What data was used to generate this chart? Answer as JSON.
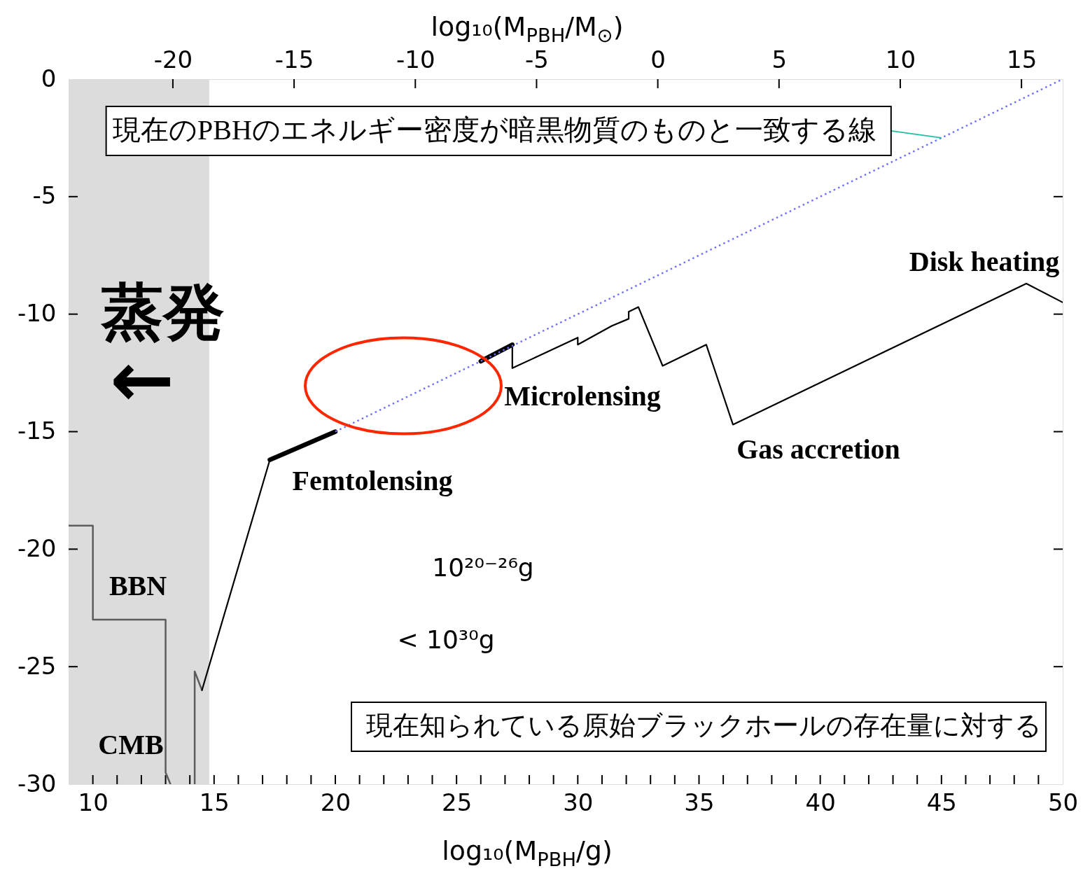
{
  "chart_data": {
    "type": "line",
    "xlabel": "log₁₀(M$_{PBH}$/g)",
    "x2label": "log₁₀(M$_{PBH}$/M$_{⊙}$)",
    "xlim": [
      9,
      50
    ],
    "ylim": [
      -30,
      0
    ],
    "x2lim": [
      -24.3,
      16.7
    ],
    "xticks": [
      10,
      {
        "value": 11,
        "label": null
      },
      {
        "value": 12,
        "label": null
      },
      {
        "value": 13,
        "label": null
      },
      {
        "value": 14,
        "label": null
      },
      15,
      {
        "value": 16,
        "label": null
      },
      {
        "value": 17,
        "label": null
      },
      {
        "value": 18,
        "label": null
      },
      {
        "value": 19,
        "label": null
      },
      20,
      {
        "value": 21,
        "label": null
      },
      {
        "value": 22,
        "label": null
      },
      {
        "value": 23,
        "label": null
      },
      {
        "value": 24,
        "label": null
      },
      25,
      {
        "value": 26,
        "label": null
      },
      {
        "value": 27,
        "label": null
      },
      {
        "value": 28,
        "label": null
      },
      {
        "value": 29,
        "label": null
      },
      30,
      {
        "value": 31,
        "label": null
      },
      {
        "value": 32,
        "label": null
      },
      {
        "value": 33,
        "label": null
      },
      {
        "value": 34,
        "label": null
      },
      35,
      {
        "value": 36,
        "label": null
      },
      {
        "value": 37,
        "label": null
      },
      {
        "value": 38,
        "label": null
      },
      {
        "value": 39,
        "label": null
      },
      40,
      {
        "value": 41,
        "label": null
      },
      {
        "value": 42,
        "label": null
      },
      {
        "value": 43,
        "label": null
      },
      {
        "value": 44,
        "label": null
      },
      45,
      {
        "value": 46,
        "label": null
      },
      {
        "value": 47,
        "label": null
      },
      {
        "value": 48,
        "label": null
      },
      {
        "value": 49,
        "label": null
      },
      50
    ],
    "yticks": [
      0,
      -5,
      -10,
      -15,
      -20,
      -25,
      -30
    ],
    "x2ticks": [
      -20,
      -15,
      -10,
      -5,
      0,
      5,
      10,
      15
    ],
    "series": [
      {
        "color": "#5c5c5c",
        "x": [
          9,
          10,
          10,
          13,
          13,
          13.2
        ],
        "values": [
          -19,
          -19,
          -23,
          -23,
          -29.5,
          -30
        ]
      },
      {
        "color": "#5c5c5c",
        "x": [
          14.2,
          14.2,
          14.5
        ],
        "values": [
          -30,
          -25.2,
          -26
        ]
      },
      {
        "color": "#000000",
        "x": [
          14.5,
          17.3
        ],
        "values": [
          -26,
          -16.2
        ]
      },
      {
        "color": "#000000",
        "x": [
          17.3,
          20
        ],
        "values": [
          -16.2,
          -15
        ]
      },
      {
        "color": "#000000",
        "x": [
          26,
          27.3
        ],
        "values": [
          -12,
          -11.3
        ]
      },
      {
        "color": "#000000",
        "x": [
          27.3,
          27.3,
          30,
          30,
          31.4,
          32.1,
          32.1,
          32.5,
          33.5,
          35.3,
          36.4,
          48.5,
          50
        ],
        "values": [
          -11.3,
          -12.3,
          -11.0,
          -11.3,
          -10.5,
          -10.2,
          -9.9,
          -9.7,
          -12.2,
          -11.3,
          -14.7,
          -8.7,
          -9.5
        ]
      },
      {
        "color": "#6e6eff",
        "line_style": "dotted",
        "x": [
          20,
          50
        ],
        "values": [
          -15,
          0
        ]
      }
    ],
    "bands": [
      {
        "axis": "x",
        "from": 9,
        "to": 14.8,
        "label": "蒸発",
        "color": "#dcdcdc"
      }
    ],
    "annotations": [
      {
        "text": "現在のPBHのエネルギー密度が暗黒物質のものと一致する線",
        "x": 45,
        "y": -2.5
      },
      "Disk heating",
      "Microlensing",
      "Gas accretion",
      "Femtolensing",
      "BBN",
      "CMB",
      "←",
      "10²⁰⁻²⁶g",
      "< 10³⁰g",
      "現在知られている原始ブラックホールの存在量に対する"
    ]
  }
}
